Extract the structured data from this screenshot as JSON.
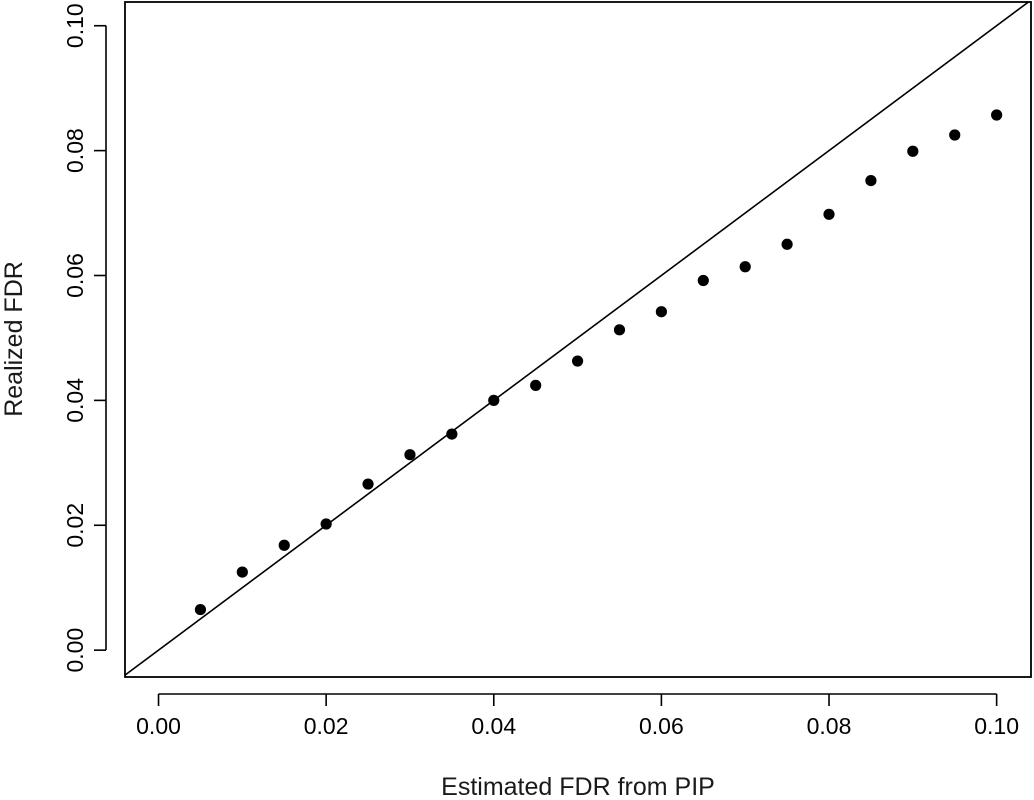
{
  "chart_data": {
    "type": "scatter",
    "title": "",
    "xlabel": "Estimated FDR from PIP",
    "ylabel": "Realized FDR",
    "xlim": [
      -0.004,
      0.1041
    ],
    "ylim": [
      -0.0043,
      0.1038
    ],
    "x_ticks": [
      0.0,
      0.02,
      0.04,
      0.06,
      0.08,
      0.1
    ],
    "x_tick_labels": [
      "0.00",
      "0.02",
      "0.04",
      "0.06",
      "0.08",
      "0.10"
    ],
    "y_ticks": [
      0.0,
      0.02,
      0.04,
      0.06,
      0.08,
      0.1
    ],
    "y_tick_labels": [
      "0.00",
      "0.02",
      "0.04",
      "0.06",
      "0.08",
      "0.10"
    ],
    "grid": false,
    "reference_line": {
      "type": "identity",
      "slope": 1,
      "intercept": 0
    },
    "series": [
      {
        "x": [
          0.005,
          0.01,
          0.015,
          0.02,
          0.025,
          0.03,
          0.035,
          0.04,
          0.045,
          0.05,
          0.055,
          0.06,
          0.065,
          0.07,
          0.075,
          0.08,
          0.085,
          0.09,
          0.095,
          0.1
        ],
        "y": [
          0.0065,
          0.0125,
          0.0168,
          0.0202,
          0.0266,
          0.0313,
          0.0346,
          0.04,
          0.0424,
          0.0463,
          0.0513,
          0.0542,
          0.0592,
          0.0614,
          0.065,
          0.0698,
          0.0752,
          0.0799,
          0.0825,
          0.0857
        ]
      }
    ],
    "colors": {
      "points": "#000000",
      "line": "#000000",
      "axis": "#000000"
    }
  }
}
